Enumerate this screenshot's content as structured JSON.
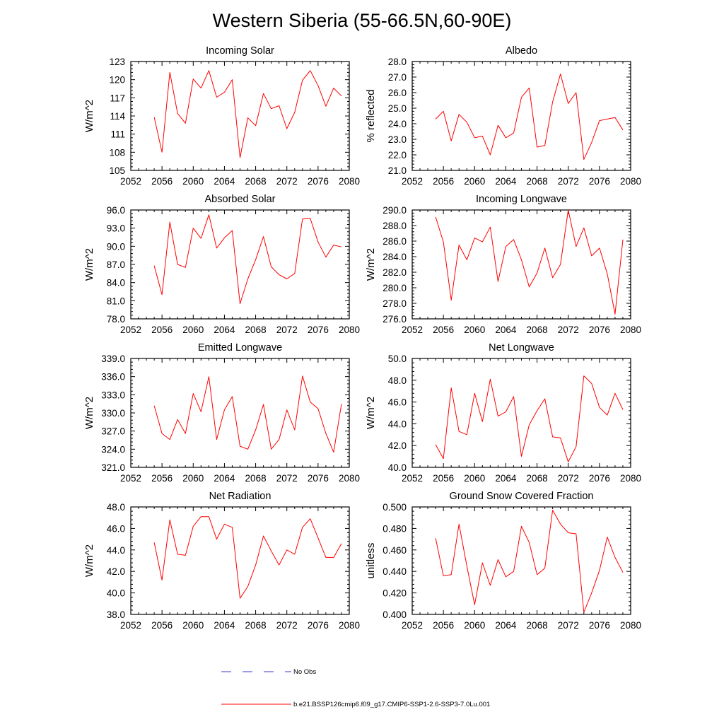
{
  "page_title": "Western Siberia (55-66.5N,60-90E)",
  "legend": {
    "obs_label": "No Obs",
    "obs_color": "#3a3ad0",
    "model_label": "b.e21.BSSP126cmip6.f09_g17.CMIP6-SSP1-2.6-SSP3-7.0Lu.001",
    "model_color": "#ff0000"
  },
  "line_color": "#ff0000",
  "chart_data": [
    {
      "type": "line",
      "title": "Incoming Solar",
      "ylabel": "W/m^2",
      "xlim": [
        2052,
        2080
      ],
      "ylim": [
        105,
        123
      ],
      "xticks": [
        2052,
        2056,
        2060,
        2064,
        2068,
        2072,
        2076,
        2080
      ],
      "yticks": [
        "105",
        "108",
        "111",
        "114",
        "117",
        "120",
        "123"
      ],
      "x": [
        2055,
        2056,
        2057,
        2058,
        2059,
        2060,
        2061,
        2062,
        2063,
        2064,
        2065,
        2066,
        2067,
        2068,
        2069,
        2070,
        2071,
        2072,
        2073,
        2074,
        2075,
        2076,
        2077,
        2078,
        2079
      ],
      "y": [
        113.8,
        108.0,
        121.2,
        114.4,
        112.8,
        120.1,
        118.6,
        121.5,
        117.1,
        117.9,
        120.0,
        107.1,
        113.7,
        112.4,
        117.7,
        115.2,
        115.7,
        111.9,
        114.6,
        119.9,
        121.5,
        119.0,
        115.6,
        118.6,
        117.3
      ]
    },
    {
      "type": "line",
      "title": "Albedo",
      "ylabel": "% reflected",
      "xlim": [
        2052,
        2080
      ],
      "ylim": [
        21.0,
        28.0
      ],
      "xticks": [
        2052,
        2056,
        2060,
        2064,
        2068,
        2072,
        2076,
        2080
      ],
      "yticks": [
        "21.0",
        "22.0",
        "23.0",
        "24.0",
        "25.0",
        "26.0",
        "27.0",
        "28.0"
      ],
      "x": [
        2055,
        2056,
        2057,
        2058,
        2059,
        2060,
        2061,
        2062,
        2063,
        2064,
        2065,
        2066,
        2067,
        2068,
        2069,
        2070,
        2071,
        2072,
        2073,
        2074,
        2075,
        2076,
        2077,
        2078,
        2079
      ],
      "y": [
        24.3,
        24.8,
        22.9,
        24.6,
        24.1,
        23.1,
        23.2,
        22.0,
        23.9,
        23.1,
        23.4,
        25.7,
        26.3,
        22.5,
        22.6,
        25.4,
        27.2,
        25.3,
        26.0,
        21.7,
        22.8,
        24.2,
        24.3,
        24.4,
        23.6
      ]
    },
    {
      "type": "line",
      "title": "Absorbed Solar",
      "ylabel": "W/m^2",
      "xlim": [
        2052,
        2080
      ],
      "ylim": [
        78.0,
        96.0
      ],
      "xticks": [
        2052,
        2056,
        2060,
        2064,
        2068,
        2072,
        2076,
        2080
      ],
      "yticks": [
        "78.0",
        "81.0",
        "84.0",
        "87.0",
        "90.0",
        "93.0",
        "96.0"
      ],
      "x": [
        2055,
        2056,
        2057,
        2058,
        2059,
        2060,
        2061,
        2062,
        2063,
        2064,
        2065,
        2066,
        2067,
        2068,
        2069,
        2070,
        2071,
        2072,
        2073,
        2074,
        2075,
        2076,
        2077,
        2078,
        2079
      ],
      "y": [
        86.8,
        82.0,
        94.0,
        87.0,
        86.5,
        93.0,
        91.3,
        95.2,
        89.7,
        91.4,
        92.6,
        80.5,
        84.6,
        87.8,
        91.6,
        86.6,
        85.3,
        84.6,
        85.5,
        94.5,
        94.6,
        90.7,
        88.2,
        90.2,
        89.9
      ]
    },
    {
      "type": "line",
      "title": "Incoming Longwave",
      "ylabel": "W/m^2",
      "xlim": [
        2052,
        2080
      ],
      "ylim": [
        276.0,
        290.0
      ],
      "xticks": [
        2052,
        2056,
        2060,
        2064,
        2068,
        2072,
        2076,
        2080
      ],
      "yticks": [
        "276.0",
        "278.0",
        "280.0",
        "282.0",
        "284.0",
        "286.0",
        "288.0",
        "290.0"
      ],
      "x": [
        2055,
        2056,
        2057,
        2058,
        2059,
        2060,
        2061,
        2062,
        2063,
        2064,
        2065,
        2066,
        2067,
        2068,
        2069,
        2070,
        2071,
        2072,
        2073,
        2074,
        2075,
        2076,
        2077,
        2078,
        2079
      ],
      "y": [
        289.1,
        285.9,
        278.4,
        285.5,
        283.6,
        286.4,
        285.9,
        287.8,
        280.8,
        285.3,
        286.2,
        283.6,
        280.1,
        281.9,
        285.1,
        281.3,
        283.0,
        290.0,
        285.3,
        287.7,
        284.1,
        285.1,
        281.8,
        276.6,
        286.2
      ]
    },
    {
      "type": "line",
      "title": "Emitted Longwave",
      "ylabel": "W/m^2",
      "xlim": [
        2052,
        2080
      ],
      "ylim": [
        321.0,
        339.0
      ],
      "xticks": [
        2052,
        2056,
        2060,
        2064,
        2068,
        2072,
        2076,
        2080
      ],
      "yticks": [
        "321.0",
        "324.0",
        "327.0",
        "330.0",
        "333.0",
        "336.0",
        "339.0"
      ],
      "x": [
        2055,
        2056,
        2057,
        2058,
        2059,
        2060,
        2061,
        2062,
        2063,
        2064,
        2065,
        2066,
        2067,
        2068,
        2069,
        2070,
        2071,
        2072,
        2073,
        2074,
        2075,
        2076,
        2077,
        2078,
        2079
      ],
      "y": [
        331.2,
        326.6,
        325.6,
        328.9,
        326.6,
        333.2,
        330.2,
        336.0,
        325.6,
        330.5,
        332.7,
        324.5,
        324.0,
        327.2,
        331.4,
        324.0,
        325.6,
        330.5,
        327.2,
        336.1,
        331.8,
        330.7,
        326.6,
        323.5,
        331.5
      ]
    },
    {
      "type": "line",
      "title": "Net Longwave",
      "ylabel": "W/m^2",
      "xlim": [
        2052,
        2080
      ],
      "ylim": [
        40.0,
        50.0
      ],
      "xticks": [
        2052,
        2056,
        2060,
        2064,
        2068,
        2072,
        2076,
        2080
      ],
      "yticks": [
        "40.0",
        "42.0",
        "44.0",
        "46.0",
        "48.0",
        "50.0"
      ],
      "x": [
        2055,
        2056,
        2057,
        2058,
        2059,
        2060,
        2061,
        2062,
        2063,
        2064,
        2065,
        2066,
        2067,
        2068,
        2069,
        2070,
        2071,
        2072,
        2073,
        2074,
        2075,
        2076,
        2077,
        2078,
        2079
      ],
      "y": [
        42.1,
        40.8,
        47.3,
        43.3,
        43.0,
        46.8,
        44.2,
        48.1,
        44.7,
        45.1,
        46.5,
        41.0,
        43.9,
        45.2,
        46.3,
        42.8,
        42.7,
        40.5,
        41.9,
        48.4,
        47.7,
        45.5,
        44.8,
        46.8,
        45.3
      ]
    },
    {
      "type": "line",
      "title": "Net Radiation",
      "ylabel": "W/m^2",
      "xlim": [
        2052,
        2080
      ],
      "ylim": [
        38.0,
        48.0
      ],
      "xticks": [
        2052,
        2056,
        2060,
        2064,
        2068,
        2072,
        2076,
        2080
      ],
      "yticks": [
        "38.0",
        "40.0",
        "42.0",
        "44.0",
        "46.0",
        "48.0"
      ],
      "x": [
        2055,
        2056,
        2057,
        2058,
        2059,
        2060,
        2061,
        2062,
        2063,
        2064,
        2065,
        2066,
        2067,
        2068,
        2069,
        2070,
        2071,
        2072,
        2073,
        2074,
        2075,
        2076,
        2077,
        2078,
        2079
      ],
      "y": [
        44.7,
        41.2,
        46.8,
        43.6,
        43.5,
        46.2,
        47.1,
        47.1,
        45.0,
        46.4,
        46.1,
        39.5,
        40.6,
        42.6,
        45.3,
        43.9,
        42.6,
        44.0,
        43.6,
        46.1,
        46.9,
        45.1,
        43.3,
        43.3,
        44.6
      ]
    },
    {
      "type": "line",
      "title": "Ground Snow Covered Fraction",
      "ylabel": "unitless",
      "xlim": [
        2052,
        2080
      ],
      "ylim": [
        0.4,
        0.5
      ],
      "xticks": [
        2052,
        2056,
        2060,
        2064,
        2068,
        2072,
        2076,
        2080
      ],
      "yticks": [
        "0.400",
        "0.420",
        "0.440",
        "0.460",
        "0.480",
        "0.500"
      ],
      "x": [
        2055,
        2056,
        2057,
        2058,
        2059,
        2060,
        2061,
        2062,
        2063,
        2064,
        2065,
        2066,
        2067,
        2068,
        2069,
        2070,
        2071,
        2072,
        2073,
        2074,
        2075,
        2076,
        2077,
        2078,
        2079
      ],
      "y": [
        0.471,
        0.436,
        0.437,
        0.484,
        0.445,
        0.409,
        0.448,
        0.427,
        0.451,
        0.435,
        0.44,
        0.482,
        0.467,
        0.437,
        0.443,
        0.497,
        0.484,
        0.476,
        0.475,
        0.402,
        0.42,
        0.441,
        0.472,
        0.453,
        0.439
      ]
    }
  ]
}
